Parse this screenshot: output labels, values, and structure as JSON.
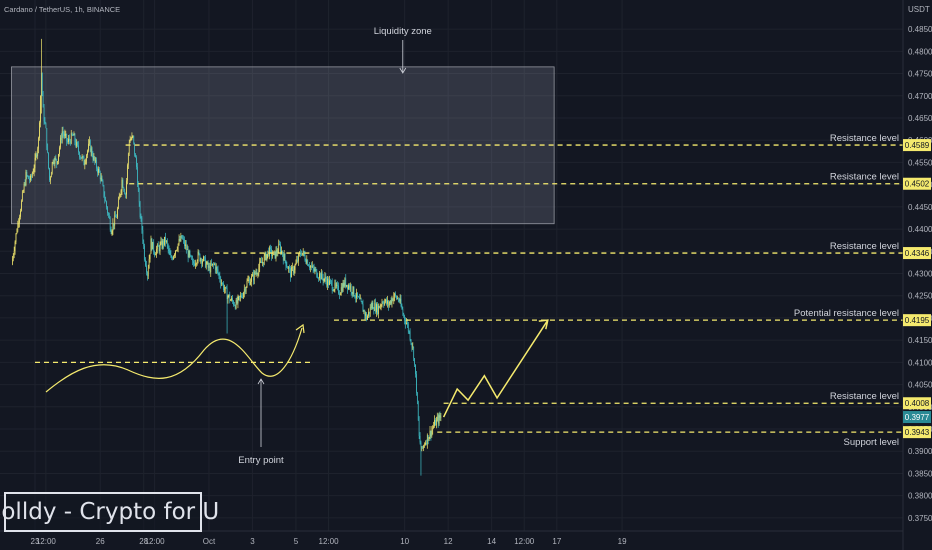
{
  "header": {
    "symbol": "Cardano / TetherUS, 1h, BINANCE",
    "currency": "USDT"
  },
  "watermark": "Solldy - Crypto for U",
  "colors": {
    "background": "#131722",
    "grid": "#1e222d",
    "up": "#f5ea6e",
    "down": "#3ec1c9",
    "annotation": "#f5ea6e",
    "current_price_tag": "#2a8a95",
    "level_tag": "#f5ea6e"
  },
  "chart_data": {
    "type": "candlestick",
    "title": "Cardano / TetherUS, 1h, BINANCE",
    "ylabel": "USDT",
    "ylim": [
      0.3725,
      0.4875
    ],
    "y_ticks": [
      "0.4850",
      "0.4800",
      "0.4750",
      "0.4700",
      "0.4650",
      "0.4600",
      "0.4550",
      "0.4500",
      "0.4450",
      "0.4400",
      "0.4350",
      "0.4300",
      "0.4250",
      "0.4200",
      "0.4150",
      "0.4100",
      "0.4050",
      "0.4000",
      "0.3950",
      "0.3900",
      "0.3850",
      "0.3800",
      "0.3750"
    ],
    "x_ticks": [
      "23",
      "12:00",
      "26",
      "28",
      "12:00",
      "Oct",
      "3",
      "5",
      "12:00",
      "10",
      "12",
      "14",
      "12:00",
      "17",
      "19"
    ],
    "x_tick_hours": [
      0,
      12,
      72,
      120,
      132,
      192,
      240,
      288,
      324,
      408,
      456,
      504,
      540,
      576,
      648
    ],
    "x_hours_range": [
      -26,
      765
    ],
    "price_path": [
      [
        -26,
        0.432
      ],
      [
        -20,
        0.44
      ],
      [
        -15,
        0.446
      ],
      [
        -10,
        0.452
      ],
      [
        -5,
        0.451
      ],
      [
        0,
        0.455
      ],
      [
        4,
        0.46
      ],
      [
        7,
        0.4752
      ],
      [
        9,
        0.4665
      ],
      [
        12,
        0.462
      ],
      [
        16,
        0.451
      ],
      [
        20,
        0.456
      ],
      [
        24,
        0.455
      ],
      [
        30,
        0.462
      ],
      [
        36,
        0.4595
      ],
      [
        42,
        0.461
      ],
      [
        48,
        0.4575
      ],
      [
        54,
        0.455
      ],
      [
        60,
        0.459
      ],
      [
        66,
        0.455
      ],
      [
        72,
        0.452
      ],
      [
        78,
        0.446
      ],
      [
        84,
        0.44
      ],
      [
        90,
        0.443
      ],
      [
        96,
        0.451
      ],
      [
        100,
        0.448
      ],
      [
        104,
        0.46
      ],
      [
        108,
        0.4605
      ],
      [
        112,
        0.454
      ],
      [
        115,
        0.445
      ],
      [
        118,
        0.44
      ],
      [
        121,
        0.434
      ],
      [
        124,
        0.43
      ],
      [
        128,
        0.437
      ],
      [
        132,
        0.435
      ],
      [
        138,
        0.436
      ],
      [
        144,
        0.4375
      ],
      [
        150,
        0.433
      ],
      [
        156,
        0.436
      ],
      [
        162,
        0.438
      ],
      [
        168,
        0.435
      ],
      [
        174,
        0.432
      ],
      [
        180,
        0.434
      ],
      [
        186,
        0.433
      ],
      [
        192,
        0.431
      ],
      [
        198,
        0.432
      ],
      [
        204,
        0.429
      ],
      [
        210,
        0.426
      ],
      [
        216,
        0.424
      ],
      [
        222,
        0.423
      ],
      [
        228,
        0.425
      ],
      [
        234,
        0.428
      ],
      [
        240,
        0.429
      ],
      [
        246,
        0.431
      ],
      [
        252,
        0.433
      ],
      [
        258,
        0.435
      ],
      [
        264,
        0.434
      ],
      [
        270,
        0.436
      ],
      [
        276,
        0.433
      ],
      [
        282,
        0.43
      ],
      [
        288,
        0.432
      ],
      [
        294,
        0.435
      ],
      [
        300,
        0.433
      ],
      [
        306,
        0.431
      ],
      [
        312,
        0.43
      ],
      [
        318,
        0.429
      ],
      [
        324,
        0.428
      ],
      [
        330,
        0.427
      ],
      [
        336,
        0.426
      ],
      [
        342,
        0.428
      ],
      [
        348,
        0.427
      ],
      [
        354,
        0.425
      ],
      [
        360,
        0.423
      ],
      [
        366,
        0.42
      ],
      [
        372,
        0.423
      ],
      [
        378,
        0.422
      ],
      [
        384,
        0.424
      ],
      [
        390,
        0.423
      ],
      [
        396,
        0.425
      ],
      [
        402,
        0.424
      ],
      [
        406,
        0.421
      ],
      [
        410,
        0.419
      ],
      [
        414,
        0.416
      ],
      [
        418,
        0.412
      ],
      [
        421,
        0.404
      ],
      [
        424,
        0.393
      ],
      [
        427,
        0.39
      ],
      [
        430,
        0.392
      ],
      [
        436,
        0.394
      ],
      [
        442,
        0.3965
      ],
      [
        448,
        0.3977
      ]
    ],
    "lows": [
      [
        7,
        0.466
      ],
      [
        212,
        0.4165
      ],
      [
        426,
        0.3845
      ]
    ],
    "levels": [
      {
        "label": "Resistance level",
        "value": 0.4589,
        "tag": "0.4589"
      },
      {
        "label": "Resistance level",
        "value": 0.4502,
        "tag": "0.4502"
      },
      {
        "label": "Resistance level",
        "value": 0.4346,
        "tag": "0.4346"
      },
      {
        "label": "Potential resistance level",
        "value": 0.4195,
        "tag": "0.4195"
      },
      {
        "label": "Resistance level",
        "value": 0.4008,
        "tag": "0.4008"
      },
      {
        "label": "Support level",
        "value": 0.3943,
        "tag": "0.3943"
      }
    ],
    "current_price": {
      "value": 0.3977,
      "tag": "0.3977"
    },
    "liquidity_zone": {
      "label": "Liquidity zone",
      "hour_start": -26,
      "hour_end": 573,
      "price_top": 0.4765,
      "price_bottom": 0.4412
    },
    "entry_point": {
      "label": "Entry point",
      "value": 0.41
    },
    "projection_path": [
      [
        451,
        0.3977
      ],
      [
        466,
        0.404
      ],
      [
        478,
        0.4015
      ],
      [
        496,
        0.407
      ],
      [
        510,
        0.402
      ],
      [
        566,
        0.4195
      ]
    ]
  }
}
